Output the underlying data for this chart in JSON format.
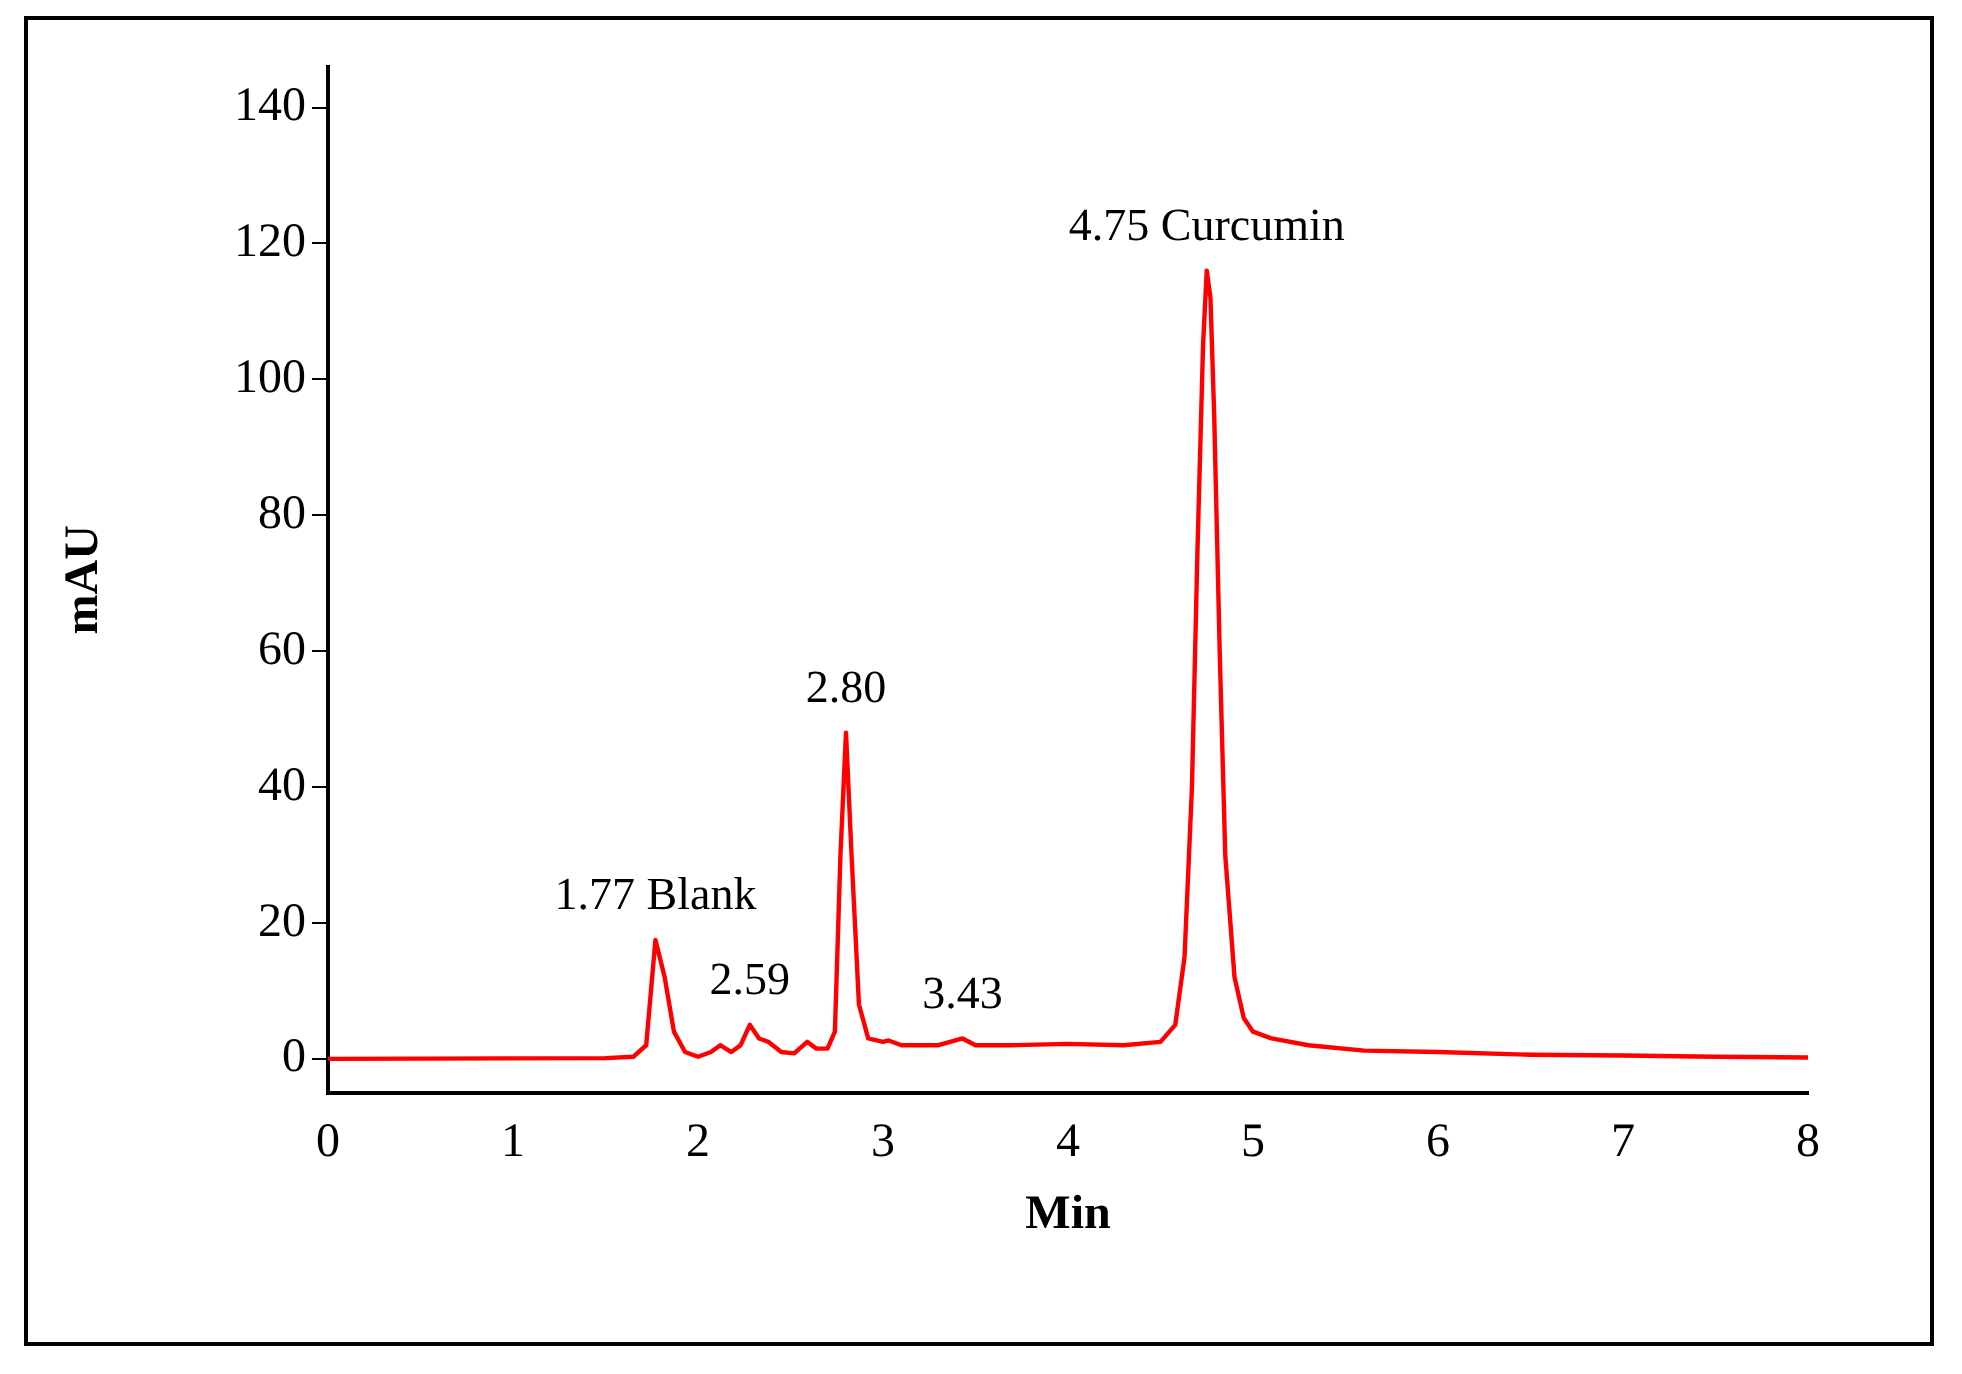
{
  "chart_data": {
    "type": "line",
    "xlabel": "Min",
    "ylabel": "mAU",
    "xlim": [
      0,
      8
    ],
    "xticks": [
      0,
      1,
      2,
      3,
      4,
      5,
      6,
      7,
      8
    ],
    "ylim": [
      -5,
      146
    ],
    "yticks": [
      0,
      20,
      40,
      60,
      80,
      100,
      120,
      140
    ],
    "grid": false,
    "legend": false,
    "marker": "none",
    "line_style": "solid",
    "series": [
      {
        "color": "#ff0000",
        "x": [
          0,
          1.5,
          1.65,
          1.72,
          1.77,
          1.82,
          1.87,
          1.93,
          2.0,
          2.07,
          2.12,
          2.18,
          2.23,
          2.28,
          2.33,
          2.38,
          2.45,
          2.52,
          2.59,
          2.64,
          2.7,
          2.74,
          2.77,
          2.8,
          2.83,
          2.87,
          2.92,
          3.0,
          3.03,
          3.1,
          3.3,
          3.43,
          3.5,
          3.7,
          4.0,
          4.3,
          4.5,
          4.58,
          4.63,
          4.67,
          4.7,
          4.73,
          4.75,
          4.77,
          4.79,
          4.82,
          4.85,
          4.9,
          4.95,
          5.0,
          5.1,
          5.3,
          5.6,
          6.0,
          6.5,
          7.0,
          7.5,
          8.0
        ],
        "values": [
          0,
          0.1,
          0.3,
          2,
          17.5,
          12,
          4,
          1,
          0.3,
          1,
          2,
          1,
          2,
          5,
          3,
          2.5,
          1,
          0.8,
          2.5,
          1.5,
          1.5,
          4,
          30,
          48,
          30,
          8,
          3,
          2.5,
          2.7,
          2,
          2,
          3,
          2,
          2,
          2.2,
          2,
          2.5,
          5,
          15,
          40,
          75,
          105,
          116,
          112,
          95,
          60,
          30,
          12,
          6,
          4,
          3,
          2,
          1.2,
          1,
          0.6,
          0.5,
          0.3,
          0.2
        ]
      }
    ],
    "annotations": [
      {
        "text": "1.77 Blank",
        "x": 1.77,
        "y": 17.5
      },
      {
        "text": "2.59",
        "x": 2.28,
        "y": 5
      },
      {
        "text": "2.80",
        "x": 2.8,
        "y": 48
      },
      {
        "text": "3.43",
        "x": 3.43,
        "y": 3
      },
      {
        "text": "4.75 Curcumin",
        "x": 4.75,
        "y": 116
      }
    ]
  }
}
